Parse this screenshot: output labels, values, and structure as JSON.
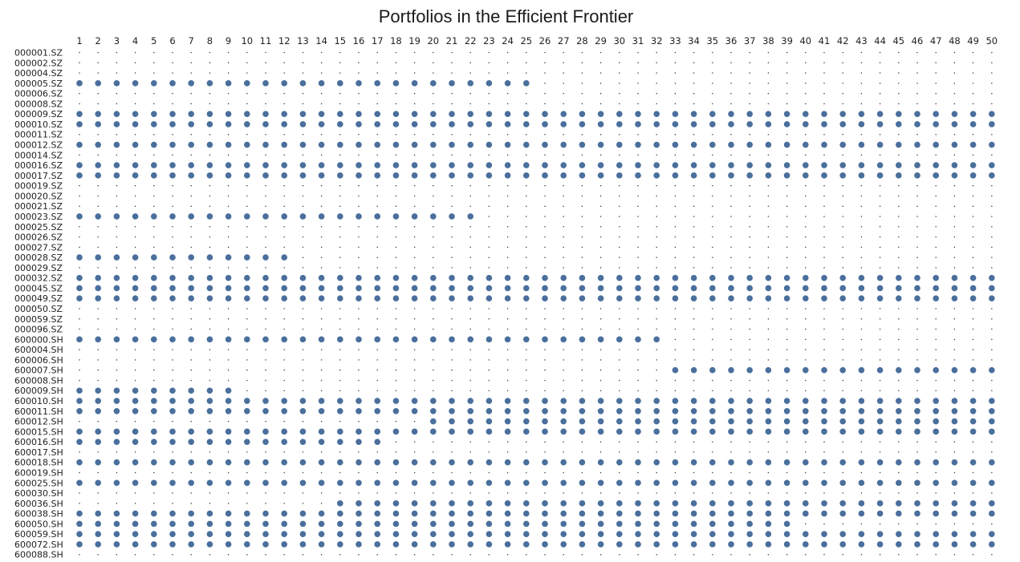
{
  "chart_data": {
    "type": "scatter",
    "title": "Portfolios in the Efficient Frontier",
    "xlabel": "",
    "ylabel": "",
    "x": [
      1,
      2,
      3,
      4,
      5,
      6,
      7,
      8,
      9,
      10,
      11,
      12,
      13,
      14,
      15,
      16,
      17,
      18,
      19,
      20,
      21,
      22,
      23,
      24,
      25,
      26,
      27,
      28,
      29,
      30,
      31,
      32,
      33,
      34,
      35,
      36,
      37,
      38,
      39,
      40,
      41,
      42,
      43,
      44,
      45,
      46,
      47,
      48,
      49,
      50
    ],
    "categories": [
      "000001.SZ",
      "000002.SZ",
      "000004.SZ",
      "000005.SZ",
      "000006.SZ",
      "000008.SZ",
      "000009.SZ",
      "000010.SZ",
      "000011.SZ",
      "000012.SZ",
      "000014.SZ",
      "000016.SZ",
      "000017.SZ",
      "000019.SZ",
      "000020.SZ",
      "000021.SZ",
      "000023.SZ",
      "000025.SZ",
      "000026.SZ",
      "000027.SZ",
      "000028.SZ",
      "000029.SZ",
      "000032.SZ",
      "000045.SZ",
      "000049.SZ",
      "000050.SZ",
      "000059.SZ",
      "000096.SZ",
      "600000.SH",
      "600004.SH",
      "600006.SH",
      "600007.SH",
      "600008.SH",
      "600009.SH",
      "600010.SH",
      "600011.SH",
      "600012.SH",
      "600015.SH",
      "600016.SH",
      "600017.SH",
      "600018.SH",
      "600019.SH",
      "600025.SH",
      "600030.SH",
      "600036.SH",
      "600038.SH",
      "600050.SH",
      "600059.SH",
      "600072.SH",
      "600088.SH"
    ],
    "included_portfolio_ranges": {
      "000001.SZ": [],
      "000002.SZ": [],
      "000004.SZ": [],
      "000005.SZ": [
        [
          1,
          25
        ]
      ],
      "000006.SZ": [],
      "000008.SZ": [],
      "000009.SZ": [
        [
          1,
          50
        ]
      ],
      "000010.SZ": [
        [
          1,
          50
        ]
      ],
      "000011.SZ": [],
      "000012.SZ": [
        [
          1,
          50
        ]
      ],
      "000014.SZ": [],
      "000016.SZ": [
        [
          1,
          50
        ]
      ],
      "000017.SZ": [
        [
          1,
          50
        ]
      ],
      "000019.SZ": [],
      "000020.SZ": [],
      "000021.SZ": [],
      "000023.SZ": [
        [
          1,
          22
        ]
      ],
      "000025.SZ": [],
      "000026.SZ": [],
      "000027.SZ": [],
      "000028.SZ": [
        [
          1,
          12
        ]
      ],
      "000029.SZ": [],
      "000032.SZ": [
        [
          1,
          50
        ]
      ],
      "000045.SZ": [
        [
          1,
          50
        ]
      ],
      "000049.SZ": [
        [
          1,
          50
        ]
      ],
      "000050.SZ": [],
      "000059.SZ": [],
      "000096.SZ": [],
      "600000.SH": [
        [
          1,
          32
        ]
      ],
      "600004.SH": [],
      "600006.SH": [],
      "600007.SH": [
        [
          33,
          50
        ]
      ],
      "600008.SH": [],
      "600009.SH": [
        [
          1,
          9
        ]
      ],
      "600010.SH": [
        [
          1,
          50
        ]
      ],
      "600011.SH": [
        [
          1,
          50
        ]
      ],
      "600012.SH": [
        [
          20,
          50
        ]
      ],
      "600015.SH": [
        [
          1,
          50
        ]
      ],
      "600016.SH": [
        [
          1,
          17
        ]
      ],
      "600017.SH": [],
      "600018.SH": [
        [
          1,
          50
        ]
      ],
      "600019.SH": [],
      "600025.SH": [
        [
          1,
          50
        ]
      ],
      "600030.SH": [],
      "600036.SH": [
        [
          15,
          50
        ]
      ],
      "600038.SH": [
        [
          1,
          50
        ]
      ],
      "600050.SH": [
        [
          1,
          39
        ]
      ],
      "600059.SH": [
        [
          1,
          50
        ]
      ],
      "600072.SH": [
        [
          1,
          50
        ]
      ],
      "600088.SH": []
    },
    "included_marker": "large dot",
    "excluded_marker": "small dot",
    "grid": false,
    "legend": "none",
    "colors": {
      "dot": "#4a6f9c",
      "small_dot": "#3a3a3a"
    }
  }
}
